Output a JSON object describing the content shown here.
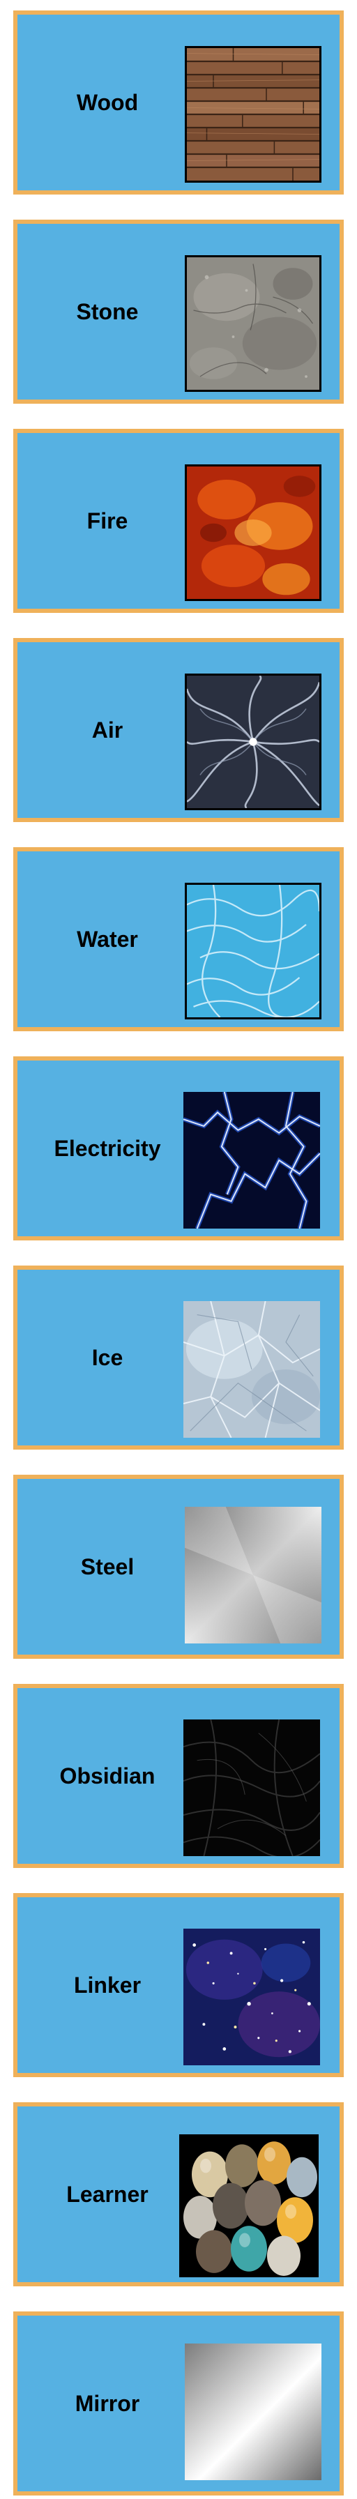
{
  "cards": [
    {
      "label": "Wood",
      "texture": "wood-planks"
    },
    {
      "label": "Stone",
      "texture": "stone"
    },
    {
      "label": "Fire",
      "texture": "fire"
    },
    {
      "label": "Air",
      "texture": "air-swirl"
    },
    {
      "label": "Water",
      "texture": "water"
    },
    {
      "label": "Electricity",
      "texture": "electricity"
    },
    {
      "label": "Ice",
      "texture": "ice"
    },
    {
      "label": "Steel",
      "texture": "steel"
    },
    {
      "label": "Obsidian",
      "texture": "obsidian"
    },
    {
      "label": "Linker",
      "texture": "starfield"
    },
    {
      "label": "Learner",
      "texture": "eggs"
    },
    {
      "label": "Mirror",
      "texture": "mirror"
    }
  ],
  "colors": {
    "card_background": "#56b1e2",
    "card_border": "#efb15a"
  }
}
